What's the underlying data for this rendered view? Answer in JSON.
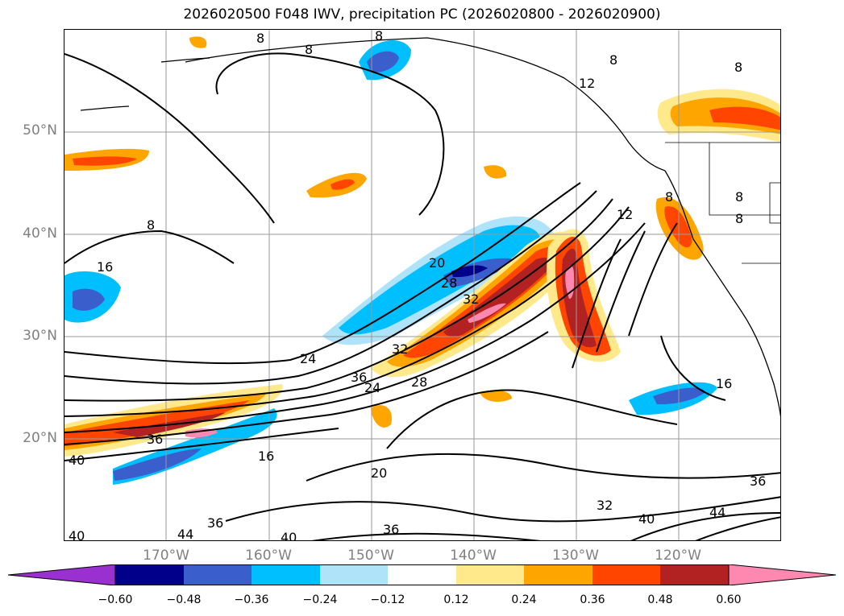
{
  "title": "2026020500 F048 IWV, precipitation PC (2026020800 - 2026020900)",
  "map": {
    "latitudes": [
      "50°N",
      "40°N",
      "30°N",
      "20°N"
    ],
    "longitudes": [
      "170°W",
      "160°W",
      "150°W",
      "140°W",
      "130°W",
      "120°W"
    ],
    "contour_labels": [
      "8",
      "8",
      "8",
      "8",
      "8",
      "8",
      "8",
      "8",
      "8",
      "12",
      "12",
      "16",
      "16",
      "16",
      "20",
      "20",
      "24",
      "24",
      "28",
      "28",
      "32",
      "32",
      "32",
      "36",
      "36",
      "36",
      "36",
      "36",
      "40",
      "40",
      "40",
      "40",
      "44",
      "44"
    ]
  },
  "colorbar": {
    "ticks": [
      "−0.60",
      "−0.48",
      "−0.36",
      "−0.24",
      "−0.12",
      "0.12",
      "0.24",
      "0.36",
      "0.48",
      "0.60"
    ],
    "colors": [
      "#9b30d0",
      "#00008b",
      "#3a5fcd",
      "#00bfff",
      "#aee3fa",
      "#ffffff",
      "#ffe98a",
      "#ffa500",
      "#ff4500",
      "#b22222",
      "#ff88b0",
      "#ff88b0"
    ]
  }
}
